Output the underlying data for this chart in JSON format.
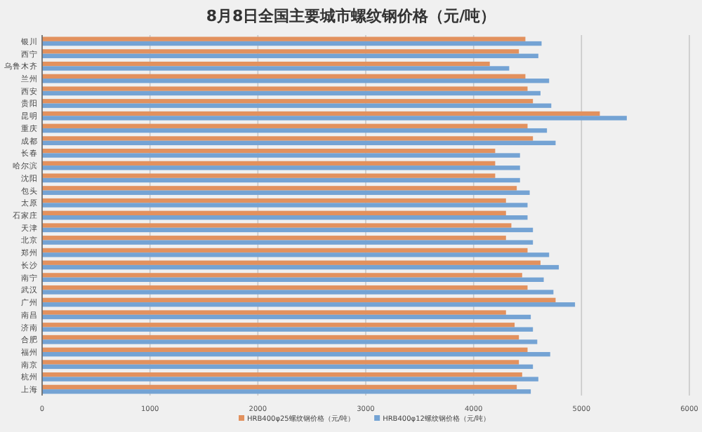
{
  "chart_data": {
    "type": "bar",
    "orientation": "horizontal",
    "title": "8月8日全国主要城市螺纹钢价格（元/吨）",
    "categories": [
      "银川",
      "西宁",
      "乌鲁木齐",
      "兰州",
      "西安",
      "贵阳",
      "昆明",
      "重庆",
      "成都",
      "长春",
      "哈尔滨",
      "沈阳",
      "包头",
      "太原",
      "石家庄",
      "天津",
      "北京",
      "郑州",
      "长沙",
      "南宁",
      "武汉",
      "广州",
      "南昌",
      "济南",
      "合肥",
      "福州",
      "南京",
      "杭州",
      "上海"
    ],
    "series": [
      {
        "name": "HRB400φ25螺纹钢价格（元/吨）",
        "color": "#e2915e",
        "values": [
          4480,
          4420,
          4150,
          4480,
          4500,
          4550,
          5170,
          4500,
          4550,
          4200,
          4200,
          4200,
          4400,
          4300,
          4300,
          4350,
          4300,
          4500,
          4620,
          4450,
          4500,
          4760,
          4300,
          4380,
          4420,
          4500,
          4420,
          4450,
          4400
        ]
      },
      {
        "name": "HRB400φ12螺纹钢价格（元/吨）",
        "color": "#74a3d4",
        "values": [
          4630,
          4600,
          4330,
          4700,
          4620,
          4720,
          5420,
          4680,
          4760,
          4430,
          4430,
          4430,
          4520,
          4500,
          4500,
          4550,
          4550,
          4700,
          4790,
          4650,
          4740,
          4940,
          4530,
          4550,
          4590,
          4710,
          4550,
          4600,
          4530
        ]
      }
    ],
    "xlim": [
      0,
      6000
    ],
    "xticks": [
      0,
      1000,
      2000,
      3000,
      4000,
      5000,
      6000
    ],
    "grid": "x",
    "legend": "bottom"
  }
}
